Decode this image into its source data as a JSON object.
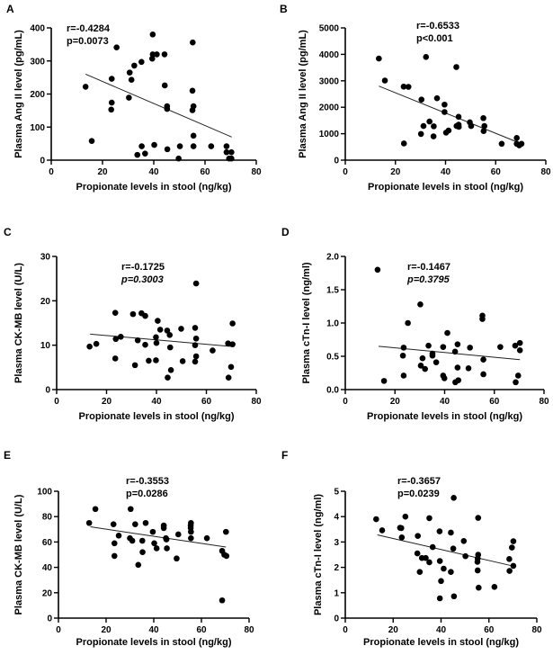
{
  "chart_data": [
    {
      "panel": "A",
      "type": "scatter",
      "xlabel": "Propionate levels in stool (ng/kg)",
      "ylabel": "Plasma Ang II level (pg/mL)",
      "xlim": [
        0,
        80
      ],
      "ylim": [
        0,
        400
      ],
      "xticks": [
        0,
        20,
        40,
        60,
        80
      ],
      "yticks": [
        0,
        100,
        200,
        300,
        400
      ],
      "r_text": "r=-0.4284",
      "p_text": "p=0.0073",
      "p_fully_italic": false,
      "fit": [
        [
          13.4,
          260
        ],
        [
          70.4,
          70
        ]
      ],
      "points": [
        [
          13.4,
          222
        ],
        [
          15.8,
          58
        ],
        [
          23.4,
          153
        ],
        [
          23.6,
          174
        ],
        [
          23.6,
          246
        ],
        [
          25.5,
          341
        ],
        [
          30.3,
          189
        ],
        [
          30.6,
          265
        ],
        [
          31.3,
          243
        ],
        [
          32.4,
          286
        ],
        [
          33.6,
          16
        ],
        [
          35.3,
          42
        ],
        [
          35.2,
          297
        ],
        [
          36.6,
          20
        ],
        [
          39.6,
          380
        ],
        [
          39.4,
          307
        ],
        [
          39.6,
          320
        ],
        [
          41.2,
          320
        ],
        [
          40.2,
          46
        ],
        [
          44.2,
          320
        ],
        [
          44.3,
          226
        ],
        [
          45.2,
          163
        ],
        [
          45.2,
          155
        ],
        [
          45.3,
          33
        ],
        [
          49.7,
          5
        ],
        [
          50.2,
          42
        ],
        [
          55.2,
          356
        ],
        [
          55.1,
          210
        ],
        [
          55.5,
          163
        ],
        [
          55.1,
          151
        ],
        [
          55.5,
          74
        ],
        [
          55.5,
          42
        ],
        [
          62.4,
          42
        ],
        [
          68.4,
          42
        ],
        [
          68.4,
          24
        ],
        [
          69.4,
          5
        ],
        [
          70.3,
          24
        ],
        [
          70.3,
          5
        ]
      ]
    },
    {
      "panel": "B",
      "type": "scatter",
      "xlabel": "Propionate levels in stool (ng/kg)",
      "ylabel": "Plasma Ang II level (pg/mL)",
      "xlim": [
        0,
        80
      ],
      "ylim": [
        0,
        5000
      ],
      "xticks": [
        0,
        20,
        40,
        60,
        80
      ],
      "yticks": [
        0,
        1000,
        2000,
        3000,
        4000,
        5000
      ],
      "r_text": "r=-0.6533",
      "p_text": "p<0.001",
      "p_fully_italic": false,
      "fit": [
        [
          13.4,
          2800
        ],
        [
          69.5,
          650
        ]
      ],
      "points": [
        [
          13.4,
          3840
        ],
        [
          15.8,
          3010
        ],
        [
          23.4,
          630
        ],
        [
          23.3,
          2780
        ],
        [
          25.2,
          2770
        ],
        [
          30.4,
          2290
        ],
        [
          30.2,
          990
        ],
        [
          31.2,
          1290
        ],
        [
          32.2,
          3900
        ],
        [
          33.6,
          1460
        ],
        [
          35.3,
          1280
        ],
        [
          35.2,
          900
        ],
        [
          36.6,
          2340
        ],
        [
          39.6,
          2100
        ],
        [
          39.6,
          1820
        ],
        [
          40.2,
          1040
        ],
        [
          41.2,
          1120
        ],
        [
          44.3,
          3520
        ],
        [
          44.4,
          1290
        ],
        [
          45.2,
          1640
        ],
        [
          45.2,
          1340
        ],
        [
          45.3,
          1260
        ],
        [
          49.7,
          1430
        ],
        [
          50.2,
          1290
        ],
        [
          55.1,
          1590
        ],
        [
          55.2,
          1100
        ],
        [
          55.5,
          1290
        ],
        [
          62.4,
          620
        ],
        [
          68.4,
          840
        ],
        [
          68.4,
          620
        ],
        [
          69.4,
          560
        ],
        [
          70.3,
          620
        ]
      ]
    },
    {
      "panel": "C",
      "type": "scatter",
      "xlabel": "Propionate levels in stool (ng/kg)",
      "ylabel": "Plasma CK-MB level (U/L)",
      "xlim": [
        0,
        80
      ],
      "ylim": [
        0,
        30
      ],
      "xticks": [
        0,
        20,
        40,
        60,
        80
      ],
      "yticks": [
        0,
        10,
        20,
        30
      ],
      "r_text": "r=-0.1725",
      "p_text": "p=0.3003",
      "p_fully_italic": true,
      "fit": [
        [
          13.4,
          12.5
        ],
        [
          70.3,
          9.7
        ]
      ],
      "points": [
        [
          13.2,
          9.7
        ],
        [
          15.9,
          10.3
        ],
        [
          23.5,
          17.3
        ],
        [
          23.7,
          11.4
        ],
        [
          23.5,
          7.0
        ],
        [
          25.7,
          11.9
        ],
        [
          30.6,
          17.0
        ],
        [
          31.4,
          5.5
        ],
        [
          32.5,
          11.1
        ],
        [
          34,
          17.2
        ],
        [
          35.5,
          16.6
        ],
        [
          35.5,
          10.1
        ],
        [
          36.9,
          6.5
        ],
        [
          39.8,
          6.6
        ],
        [
          39.8,
          11.8
        ],
        [
          40,
          10.5
        ],
        [
          40.5,
          15.5
        ],
        [
          41.5,
          13.5
        ],
        [
          44.3,
          13.3
        ],
        [
          44.5,
          2.7
        ],
        [
          45.3,
          12.3
        ],
        [
          45.5,
          9.5
        ],
        [
          45.8,
          4.4
        ],
        [
          49.9,
          13.7
        ],
        [
          50.5,
          6.4
        ],
        [
          55.5,
          13.9
        ],
        [
          55.9,
          11.5
        ],
        [
          55.5,
          10.0
        ],
        [
          55.9,
          7.5
        ],
        [
          55.5,
          6.3
        ],
        [
          55.9,
          23.9
        ],
        [
          62.5,
          8.8
        ],
        [
          68.7,
          10.4
        ],
        [
          68.9,
          2.7
        ],
        [
          69.9,
          5.1
        ],
        [
          70.5,
          10.2
        ],
        [
          70.5,
          14.9
        ]
      ]
    },
    {
      "panel": "D",
      "type": "scatter",
      "xlabel": "Propionate levels in stool (ng/kg)",
      "ylabel": "Plasma cTn-I level (ng/ml)",
      "xlim": [
        0,
        80
      ],
      "ylim": [
        0,
        2.0
      ],
      "xticks": [
        0,
        20,
        40,
        60,
        80
      ],
      "yticks": [
        0.0,
        0.5,
        1.0,
        1.5,
        2.0
      ],
      "r_text": "r=-0.1467",
      "p_text": "p=0.3795",
      "p_fully_italic": true,
      "fit": [
        [
          13.4,
          0.65
        ],
        [
          70.3,
          0.45
        ]
      ],
      "points": [
        [
          13,
          1.8
        ],
        [
          15.6,
          0.13
        ],
        [
          23.2,
          0.51
        ],
        [
          23.5,
          0.63
        ],
        [
          23.5,
          0.21
        ],
        [
          25.2,
          1.0
        ],
        [
          30.2,
          1.28
        ],
        [
          30.4,
          0.36
        ],
        [
          31.1,
          0.47
        ],
        [
          32.1,
          0.31
        ],
        [
          33.5,
          0.66
        ],
        [
          35.1,
          0.54
        ],
        [
          35.1,
          0.51
        ],
        [
          36.6,
          0.41
        ],
        [
          39.4,
          0.64
        ],
        [
          39.4,
          0.21
        ],
        [
          39.9,
          0.17
        ],
        [
          41.1,
          0.85
        ],
        [
          44.2,
          0.57
        ],
        [
          44.3,
          0.11
        ],
        [
          45.2,
          0.68
        ],
        [
          45.5,
          0.14
        ],
        [
          45.2,
          0.33
        ],
        [
          49.6,
          0.32
        ],
        [
          50.2,
          0.63
        ],
        [
          55.2,
          1.11
        ],
        [
          55.2,
          1.06
        ],
        [
          55.6,
          0.45
        ],
        [
          55.6,
          0.23
        ],
        [
          62.4,
          0.64
        ],
        [
          68.4,
          0.66
        ],
        [
          68.6,
          0.11
        ],
        [
          69.6,
          0.21
        ],
        [
          70.3,
          0.7
        ],
        [
          70.3,
          0.59
        ]
      ]
    },
    {
      "panel": "E",
      "type": "scatter",
      "xlabel": "Propionate levels in stool (ng/kg)",
      "ylabel": "Plasma CK-MB level (U/L)",
      "xlim": [
        0,
        80
      ],
      "ylim": [
        0,
        100
      ],
      "xticks": [
        0,
        20,
        40,
        60,
        80
      ],
      "yticks": [
        0,
        20,
        40,
        60,
        80,
        100
      ],
      "r_text": "r=-0.3553",
      "p_text": "p=0.0286",
      "p_fully_italic": false,
      "fit": [
        [
          13.4,
          72
        ],
        [
          70.3,
          56
        ]
      ],
      "points": [
        [
          12.9,
          75
        ],
        [
          15.5,
          86
        ],
        [
          23.1,
          74
        ],
        [
          23.5,
          59
        ],
        [
          23.5,
          49
        ],
        [
          25.3,
          65
        ],
        [
          30.3,
          86
        ],
        [
          30,
          63
        ],
        [
          31,
          61
        ],
        [
          32.2,
          74
        ],
        [
          33.5,
          42
        ],
        [
          35.2,
          61
        ],
        [
          35.3,
          52
        ],
        [
          36.6,
          75
        ],
        [
          39.6,
          68
        ],
        [
          40.2,
          59
        ],
        [
          41.2,
          55
        ],
        [
          44.2,
          73
        ],
        [
          44.2,
          71
        ],
        [
          45.1,
          63
        ],
        [
          45.3,
          62
        ],
        [
          45.5,
          55
        ],
        [
          49.6,
          47
        ],
        [
          50.3,
          66
        ],
        [
          55.6,
          75
        ],
        [
          55.5,
          73
        ],
        [
          55.5,
          71
        ],
        [
          55.6,
          68
        ],
        [
          55.6,
          63
        ],
        [
          62.3,
          63
        ],
        [
          68.7,
          53
        ],
        [
          68.7,
          14
        ],
        [
          69.6,
          50
        ],
        [
          70.3,
          68
        ],
        [
          70.5,
          49
        ]
      ]
    },
    {
      "panel": "F",
      "type": "scatter",
      "xlabel": "Propionate levels in stool (ng/kg)",
      "ylabel": "Plasma cTn-I level (ng/ml)",
      "xlim": [
        0,
        80
      ],
      "ylim": [
        0,
        5
      ],
      "xticks": [
        0,
        20,
        40,
        60,
        80
      ],
      "yticks": [
        0,
        1,
        2,
        3,
        4,
        5
      ],
      "r_text": "r=-0.3657",
      "p_text": "p=0.0239",
      "p_fully_italic": false,
      "fit": [
        [
          13.4,
          3.28
        ],
        [
          70.2,
          2.05
        ]
      ],
      "points": [
        [
          12.9,
          3.9
        ],
        [
          15.4,
          3.46
        ],
        [
          22.9,
          3.56
        ],
        [
          23.4,
          3.55
        ],
        [
          23.6,
          3.18
        ],
        [
          25.1,
          4.0
        ],
        [
          30.3,
          3.24
        ],
        [
          30.1,
          2.55
        ],
        [
          31.1,
          1.82
        ],
        [
          32,
          2.37
        ],
        [
          33.6,
          2.37
        ],
        [
          35.1,
          3.94
        ],
        [
          35.1,
          2.2
        ],
        [
          36.5,
          2.8
        ],
        [
          39.4,
          3.42
        ],
        [
          39.5,
          2.25
        ],
        [
          40,
          1.46
        ],
        [
          39.5,
          0.78
        ],
        [
          41.1,
          1.95
        ],
        [
          44.1,
          3.37
        ],
        [
          44.1,
          1.82
        ],
        [
          45.3,
          4.74
        ],
        [
          45.1,
          2.74
        ],
        [
          45.4,
          0.86
        ],
        [
          49.5,
          3.04
        ],
        [
          50.2,
          2.44
        ],
        [
          55.5,
          3.95
        ],
        [
          55.5,
          2.5
        ],
        [
          55.3,
          2.35
        ],
        [
          55.2,
          2.22
        ],
        [
          55.3,
          1.88
        ],
        [
          55.7,
          1.2
        ],
        [
          62.3,
          1.23
        ],
        [
          68.5,
          2.33
        ],
        [
          68.6,
          1.86
        ],
        [
          69.6,
          2.78
        ],
        [
          70.2,
          3.03
        ],
        [
          70.2,
          2.06
        ]
      ]
    }
  ]
}
